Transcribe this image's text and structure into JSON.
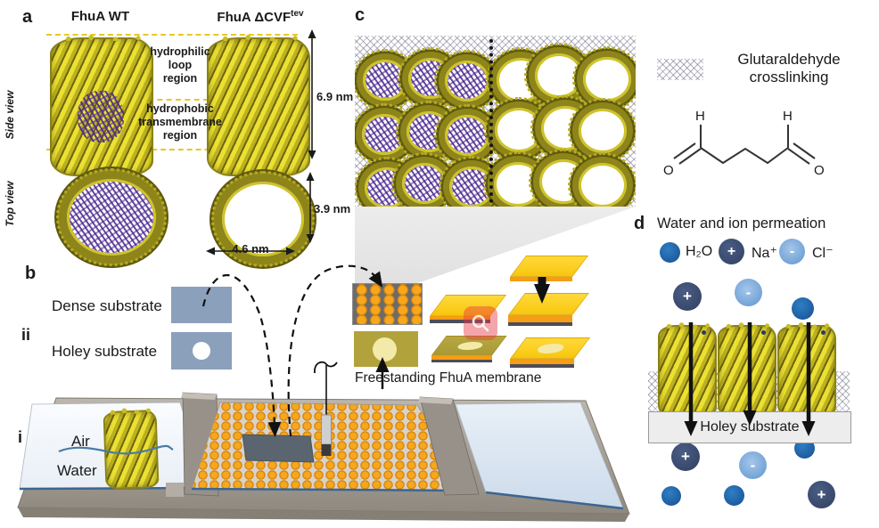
{
  "panel_a": {
    "label": "a",
    "wt_title": "FhuA WT",
    "mutant_title_base": "FhuA ΔCVF",
    "mutant_title_sup": "tev",
    "side_view_label": "Side view",
    "top_view_label": "Top view",
    "hydrophilic_line1": "hydrophilic",
    "hydrophilic_line2": "loop",
    "hydrophilic_line3": "region",
    "hydrophobic_line1": "hydrophobic",
    "hydrophobic_line2": "transmembrane",
    "hydrophobic_line3": "region",
    "height_dim": "6.9 nm",
    "pore_dim": "3.9 nm",
    "width_dim": "4.6 nm"
  },
  "panel_b": {
    "label": "b",
    "row_ii_label": "ii",
    "row_i_label": "i",
    "dense_label": "Dense substrate",
    "holey_label": "Holey substrate",
    "air_label": "Air",
    "water_label": "Water",
    "freestanding_label": "Freestanding FhuA membrane"
  },
  "panel_c": {
    "label": "c",
    "grid": {
      "rows": 3,
      "plugged_cols": 3,
      "open_cols": 3
    }
  },
  "crosslink": {
    "line1": "Glutaraldehyde",
    "line2": "crosslinking",
    "h": "H",
    "o": "O"
  },
  "panel_d": {
    "label": "d",
    "title": "Water and ion permeation",
    "water": "H₂O",
    "sodium": "Na⁺",
    "chloride": "Cl⁻",
    "plus": "+",
    "minus": "-",
    "box_label": "Holey substrate"
  }
}
